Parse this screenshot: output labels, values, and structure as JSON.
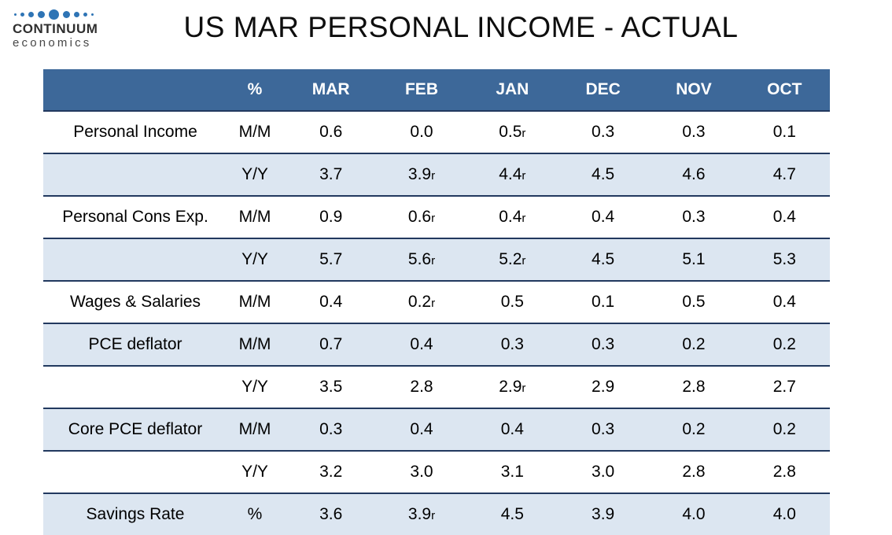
{
  "logo": {
    "line1": "CONTINUUM",
    "line2": "economics"
  },
  "header": {
    "title": "US MAR PERSONAL INCOME - ACTUAL"
  },
  "colors": {
    "header-bg": "#3D6899",
    "header-text": "#FFFFFF",
    "shaded-row": "#DCE6F1",
    "row-border": "#22395F",
    "dot-blue": "#2E74B5",
    "title-text": "#0E0E0E"
  },
  "chart_data": {
    "type": "table",
    "title": "US MAR PERSONAL INCOME - ACTUAL",
    "columns": [
      "",
      "%",
      "MAR",
      "FEB",
      "JAN",
      "DEC",
      "NOV",
      "OCT"
    ],
    "rows": [
      {
        "label": "Personal Income",
        "unit": "M/M",
        "values": [
          "0.6",
          "0.0",
          "0.5r",
          "0.3",
          "0.3",
          "0.1"
        ],
        "shaded": false
      },
      {
        "label": "",
        "unit": "Y/Y",
        "values": [
          "3.7",
          "3.9r",
          "4.4r",
          "4.5",
          "4.6",
          "4.7"
        ],
        "shaded": true
      },
      {
        "label": "Personal Cons Exp.",
        "unit": "M/M",
        "values": [
          "0.9",
          "0.6r",
          "0.4r",
          "0.4",
          "0.3",
          "0.4"
        ],
        "shaded": false
      },
      {
        "label": "",
        "unit": "Y/Y",
        "values": [
          "5.7",
          "5.6r",
          "5.2r",
          "4.5",
          "5.1",
          "5.3"
        ],
        "shaded": true
      },
      {
        "label": "Wages & Salaries",
        "unit": "M/M",
        "values": [
          "0.4",
          "0.2r",
          "0.5",
          "0.1",
          "0.5",
          "0.4"
        ],
        "shaded": false
      },
      {
        "label": "PCE deflator",
        "unit": "M/M",
        "values": [
          "0.7",
          "0.4",
          "0.3",
          "0.3",
          "0.2",
          "0.2"
        ],
        "shaded": true
      },
      {
        "label": "",
        "unit": "Y/Y",
        "values": [
          "3.5",
          "2.8",
          "2.9r",
          "2.9",
          "2.8",
          "2.7"
        ],
        "shaded": false
      },
      {
        "label": "Core PCE deflator",
        "unit": "M/M",
        "values": [
          "0.3",
          "0.4",
          "0.4",
          "0.3",
          "0.2",
          "0.2"
        ],
        "shaded": true
      },
      {
        "label": "",
        "unit": "Y/Y",
        "values": [
          "3.2",
          "3.0",
          "3.1",
          "3.0",
          "2.8",
          "2.8"
        ],
        "shaded": false
      },
      {
        "label": "Savings Rate",
        "unit": "%",
        "values": [
          "3.6",
          "3.9r",
          "4.5",
          "3.9",
          "4.0",
          "4.0"
        ],
        "shaded": true
      }
    ]
  }
}
